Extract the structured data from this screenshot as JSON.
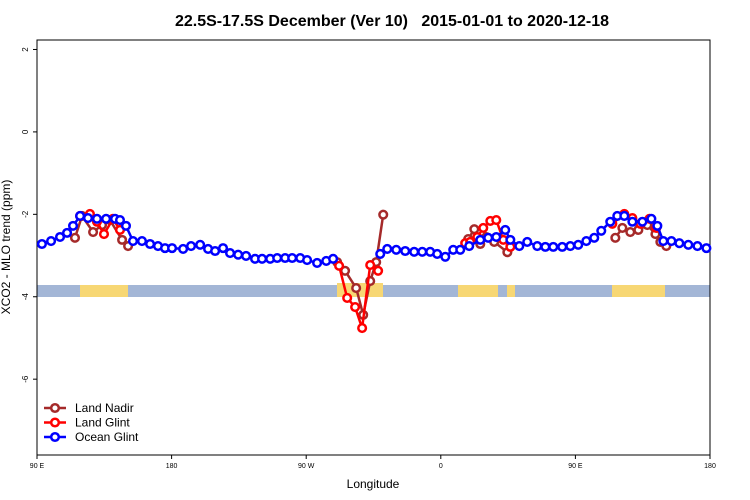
{
  "chart_data": {
    "type": "line",
    "title": "22.5S-17.5S December (Ver 10)   2015-01-01 to 2020-12-18",
    "x_label": "Longitude",
    "y_label": "XCO2 - MLO trend (ppm)",
    "xlim": [
      90,
      540
    ],
    "ylim": [
      -7.84,
      2.23
    ],
    "xticks": [
      {
        "value": 90,
        "label": "90 E"
      },
      180,
      {
        "value": 270,
        "label": "90 W"
      },
      {
        "value": 360,
        "label": "0"
      },
      {
        "value": 450,
        "label": "90 E"
      },
      180.0001
    ],
    "yticks": [
      2,
      0,
      -2,
      -4,
      -6
    ],
    "legend": "bottom-left",
    "series": [
      {
        "name": "Land Nadir",
        "color": "#a52a2a",
        "x": [
          115.4,
          120.1,
          127.5,
          133.5,
          138.8,
          146.9,
          150.9,
          null,
          290.7,
          296.0,
          303.4,
          308.1,
          312.8,
          316.8,
          321.5,
          null,
          378.3,
          382.4,
          386.4,
          390.4,
          395.7,
          404.5,
          null,
          476.7,
          481.4,
          486.7,
          492.1,
          498.1,
          503.5,
          506.8,
          510.8
        ],
        "values": [
          -2.57,
          -2.04,
          -2.43,
          -2.26,
          -2.14,
          -2.62,
          -2.77,
          null,
          -3.16,
          -3.37,
          -3.79,
          -4.44,
          -3.62,
          -3.16,
          -2.01,
          null,
          -2.6,
          -2.36,
          -2.72,
          -2.55,
          -2.67,
          -2.92,
          null,
          -2.57,
          -2.33,
          -2.43,
          -2.38,
          -2.26,
          -2.48,
          -2.67,
          -2.77
        ]
      },
      {
        "name": "Land Glint",
        "color": "#ff0000",
        "x": [
          118.8,
          125.4,
          130.1,
          134.8,
          140.8,
          145.5,
          null,
          292.0,
          297.4,
          302.7,
          307.4,
          312.8,
          318.1,
          null,
          376.3,
          379.6,
          384.4,
          388.4,
          393.1,
          397.1,
          401.8,
          406.5,
          null,
          474.7,
          482.7,
          488.1,
          493.4,
          499.5,
          504.1
        ],
        "values": [
          -2.04,
          -1.99,
          -2.18,
          -2.48,
          -2.11,
          -2.38,
          null,
          -3.25,
          -4.03,
          -4.25,
          -4.76,
          -3.23,
          -3.37,
          null,
          -2.7,
          -2.67,
          -2.55,
          -2.33,
          -2.16,
          -2.14,
          -2.62,
          -2.79,
          null,
          -2.23,
          -1.99,
          -2.09,
          -2.23,
          -2.11,
          -2.33
        ]
      },
      {
        "name": "Ocean Glint",
        "color": "#0000ff",
        "x": [
          93.3,
          99.4,
          105.4,
          110.1,
          114.1,
          118.8,
          124.1,
          130.1,
          136.2,
          142.2,
          145.5,
          149.5,
          154.2,
          160.2,
          165.6,
          170.9,
          175.6,
          180.3,
          187.7,
          193.0,
          199.1,
          204.4,
          209.1,
          214.4,
          219.1,
          224.5,
          229.8,
          235.8,
          240.5,
          245.9,
          250.6,
          255.9,
          260.6,
          266.0,
          270.6,
          277.3,
          283.4,
          288.0,
          null,
          319.5,
          324.2,
          330.2,
          336.2,
          342.2,
          347.6,
          352.9,
          357.6,
          363.0,
          368.3,
          373.0,
          379.0,
          386.4,
          391.7,
          397.1,
          403.1,
          406.5,
          412.5,
          417.8,
          424.5,
          429.9,
          435.2,
          441.2,
          446.6,
          451.9,
          457.3,
          462.6,
          467.3,
          473.3,
          478.0,
          482.7,
          488.1,
          494.8,
          500.8,
          504.8,
          508.8,
          514.2,
          519.5,
          525.5,
          531.6,
          537.6
        ],
        "values": [
          -2.72,
          -2.65,
          -2.55,
          -2.45,
          -2.28,
          -2.04,
          -2.09,
          -2.11,
          -2.11,
          -2.11,
          -2.14,
          -2.28,
          -2.65,
          -2.65,
          -2.72,
          -2.77,
          -2.82,
          -2.82,
          -2.84,
          -2.77,
          -2.74,
          -2.84,
          -2.89,
          -2.82,
          -2.94,
          -2.98,
          -3.01,
          -3.08,
          -3.08,
          -3.08,
          -3.06,
          -3.06,
          -3.06,
          -3.06,
          -3.11,
          -3.18,
          -3.13,
          -3.08,
          null,
          -2.96,
          -2.84,
          -2.86,
          -2.89,
          -2.91,
          -2.91,
          -2.91,
          -2.96,
          -3.03,
          -2.86,
          -2.86,
          -2.77,
          -2.62,
          -2.57,
          -2.55,
          -2.38,
          -2.62,
          -2.77,
          -2.67,
          -2.77,
          -2.79,
          -2.79,
          -2.79,
          -2.77,
          -2.74,
          -2.65,
          -2.57,
          -2.4,
          -2.18,
          -2.04,
          -2.04,
          -2.18,
          -2.18,
          -2.11,
          -2.28,
          -2.65,
          -2.65,
          -2.7,
          -2.74,
          -2.77,
          -2.82
        ]
      }
    ]
  }
}
